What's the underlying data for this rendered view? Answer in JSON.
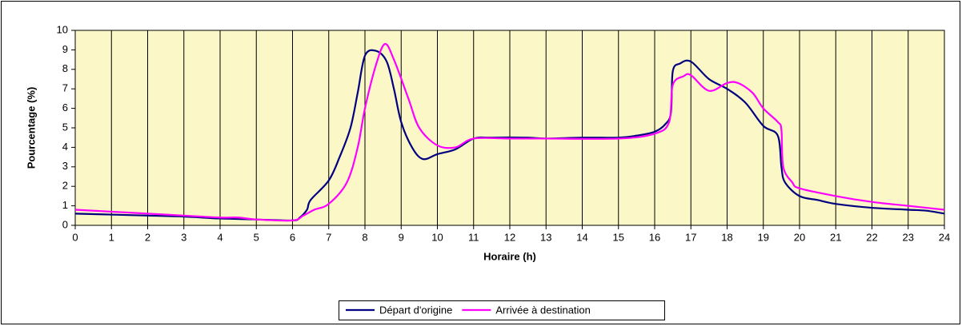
{
  "chart_data": {
    "type": "line",
    "xlabel": "Horaire (h)",
    "ylabel": "Pourcentage (%)",
    "xlim": [
      0,
      24
    ],
    "xticks": [
      0,
      1,
      2,
      3,
      4,
      5,
      6,
      7,
      8,
      9,
      10,
      11,
      12,
      13,
      14,
      15,
      16,
      17,
      18,
      19,
      20,
      21,
      22,
      23,
      24
    ],
    "ylim": [
      0,
      10
    ],
    "yticks": [
      0,
      1,
      2,
      3,
      4,
      5,
      6,
      7,
      8,
      9,
      10
    ],
    "grid": true,
    "legend": "bottom",
    "background": "#fbf7c6",
    "series": [
      {
        "name": "Départ d'origine",
        "color": "#000080",
        "x": [
          0,
          1,
          2,
          3,
          4,
          5,
          6,
          6.2,
          6.4,
          6.5,
          7,
          7.3,
          7.6,
          7.8,
          8,
          8.3,
          8.6,
          8.8,
          9,
          9.3,
          9.6,
          10,
          10.5,
          11,
          11.5,
          12.5,
          13,
          14,
          15,
          15.5,
          16,
          16.3,
          16.45,
          16.5,
          16.7,
          17,
          17.5,
          18,
          18.5,
          19,
          19.4,
          19.5,
          19.6,
          20,
          20.5,
          21,
          22,
          23,
          23.5,
          24
        ],
        "values": [
          0.6,
          0.55,
          0.5,
          0.45,
          0.35,
          0.3,
          0.25,
          0.4,
          0.8,
          1.3,
          2.3,
          3.5,
          5.0,
          6.8,
          8.7,
          8.95,
          8.4,
          7.0,
          5.3,
          4.0,
          3.4,
          3.65,
          3.9,
          4.45,
          4.5,
          4.5,
          4.45,
          4.5,
          4.5,
          4.6,
          4.8,
          5.2,
          5.8,
          7.9,
          8.3,
          8.4,
          7.5,
          7.0,
          6.3,
          5.1,
          4.6,
          3.0,
          2.2,
          1.5,
          1.3,
          1.1,
          0.9,
          0.8,
          0.75,
          0.6
        ]
      },
      {
        "name": "Arrivée à destination",
        "color": "#ff00ff",
        "x": [
          0,
          1,
          2,
          3,
          4,
          4.5,
          5,
          6,
          6.3,
          6.6,
          7,
          7.5,
          7.8,
          8,
          8.3,
          8.55,
          8.8,
          9.2,
          9.5,
          10,
          10.5,
          11,
          12,
          13,
          15,
          16,
          16.4,
          16.5,
          16.8,
          17,
          17.5,
          18,
          18.3,
          18.7,
          19,
          19.4,
          19.5,
          19.55,
          19.8,
          20,
          21,
          22,
          23,
          24
        ],
        "values": [
          0.8,
          0.7,
          0.6,
          0.5,
          0.4,
          0.4,
          0.3,
          0.25,
          0.5,
          0.8,
          1.1,
          2.2,
          4.0,
          6.0,
          8.2,
          9.3,
          8.5,
          6.5,
          5.0,
          4.1,
          4.0,
          4.45,
          4.45,
          4.45,
          4.45,
          4.7,
          5.3,
          7.2,
          7.65,
          7.7,
          6.9,
          7.3,
          7.3,
          6.8,
          6.0,
          5.3,
          4.9,
          3.0,
          2.2,
          1.9,
          1.5,
          1.2,
          1.0,
          0.8
        ]
      }
    ]
  }
}
